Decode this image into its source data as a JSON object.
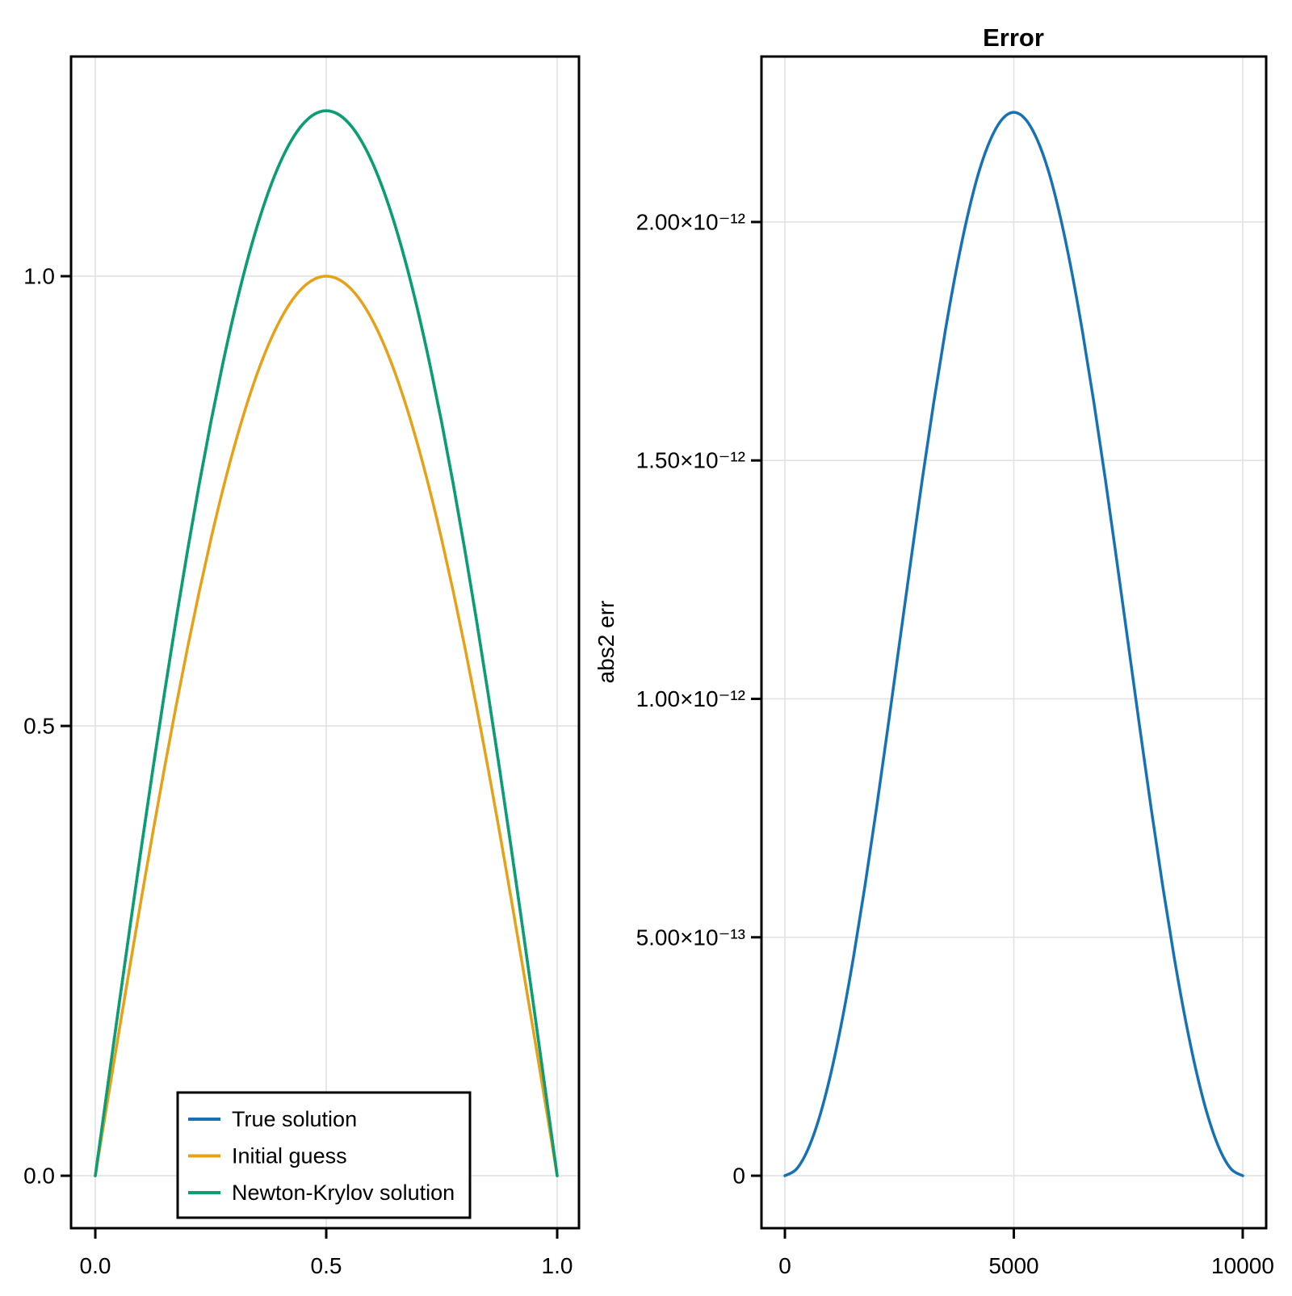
{
  "figure": {
    "background": "#ffffff"
  },
  "colors": {
    "series_blue": "#1772B5",
    "series_orange": "#E6A117",
    "series_green": "#0C9E73",
    "grid": "#E2E2E2",
    "axis": "#000000",
    "legend_background": "#FFFFFF",
    "legend_border": "#000000"
  },
  "legend": {
    "items": [
      {
        "label": "True solution",
        "color": "#1772B5"
      },
      {
        "label": "Initial guess",
        "color": "#E6A117"
      },
      {
        "label": "Newton-Krylov solution",
        "color": "#0C9E73"
      }
    ]
  },
  "chart_data": [
    {
      "type": "line",
      "panel": "left",
      "title": "",
      "xlabel": "",
      "ylabel": "",
      "grid": true,
      "legend_position": "bottom-left-inside",
      "xlim": [
        -0.0525,
        1.0472
      ],
      "ylim": [
        -0.0583,
        1.2442
      ],
      "xticks": {
        "values": [
          0.0,
          0.5,
          1.0
        ],
        "labels": [
          "0.0",
          "0.5",
          "1.0"
        ]
      },
      "yticks": {
        "values": [
          0.0,
          0.5,
          1.0
        ],
        "labels": [
          "0.0",
          "0.5",
          "1.0"
        ]
      },
      "x": [
        0,
        0.025,
        0.05,
        0.075,
        0.1,
        0.125,
        0.15,
        0.175,
        0.2,
        0.225,
        0.25,
        0.275,
        0.3,
        0.325,
        0.35,
        0.375,
        0.4,
        0.425,
        0.45,
        0.475,
        0.5,
        0.525,
        0.55,
        0.575,
        0.6,
        0.625,
        0.65,
        0.675,
        0.7,
        0.725,
        0.75,
        0.775,
        0.8,
        0.825,
        0.85,
        0.875,
        0.9,
        0.925,
        0.95,
        0.975,
        1.0
      ],
      "series": [
        {
          "name": "True solution",
          "color": "#1772B5",
          "peak": 1.184,
          "values": [
            0,
            0.0929,
            0.1852,
            0.2763,
            0.3659,
            0.4531,
            0.5375,
            0.6186,
            0.6959,
            0.7689,
            0.8372,
            0.9003,
            0.9579,
            1.0095,
            1.0549,
            1.0939,
            1.1261,
            1.1513,
            1.1694,
            1.1803,
            1.184,
            1.1803,
            1.1694,
            1.1513,
            1.1261,
            1.0939,
            1.0549,
            1.0095,
            0.9579,
            0.9003,
            0.8372,
            0.7689,
            0.6959,
            0.6186,
            0.5375,
            0.4531,
            0.3659,
            0.2763,
            0.1852,
            0.0929,
            0
          ]
        },
        {
          "name": "Initial guess",
          "color": "#E6A117",
          "peak": 1.0,
          "values": [
            0,
            0.0785,
            0.1564,
            0.2334,
            0.309,
            0.3827,
            0.454,
            0.5225,
            0.5878,
            0.6494,
            0.7071,
            0.7604,
            0.809,
            0.8526,
            0.891,
            0.9239,
            0.9511,
            0.9724,
            0.9877,
            0.9969,
            1.0,
            0.9969,
            0.9877,
            0.9724,
            0.9511,
            0.9239,
            0.891,
            0.8526,
            0.809,
            0.7604,
            0.7071,
            0.6494,
            0.5878,
            0.5225,
            0.454,
            0.3827,
            0.309,
            0.2334,
            0.1564,
            0.0785,
            0
          ]
        },
        {
          "name": "Newton-Krylov solution",
          "color": "#0C9E73",
          "peak": 1.184,
          "values": [
            0,
            0.0929,
            0.1852,
            0.2763,
            0.3659,
            0.4531,
            0.5375,
            0.6186,
            0.6959,
            0.7689,
            0.8372,
            0.9003,
            0.9579,
            1.0095,
            1.0549,
            1.0939,
            1.1261,
            1.1513,
            1.1694,
            1.1803,
            1.184,
            1.1803,
            1.1694,
            1.1513,
            1.1261,
            1.0939,
            1.0549,
            1.0095,
            0.9579,
            0.9003,
            0.8372,
            0.7689,
            0.6959,
            0.6186,
            0.5375,
            0.4531,
            0.3659,
            0.2763,
            0.1852,
            0.0929,
            0
          ]
        }
      ]
    },
    {
      "type": "line",
      "panel": "right",
      "title": "Error",
      "xlabel": "",
      "ylabel": "abs2 err",
      "grid": true,
      "legend_position": "none",
      "xlim": [
        -512,
        10512
      ],
      "ylim": [
        -1.1e-13,
        2.347e-12
      ],
      "xticks": {
        "values": [
          0,
          5000,
          10000
        ],
        "labels": [
          "0",
          "5000",
          "10000"
        ]
      },
      "yticks": {
        "values": [
          0,
          5e-13,
          1e-12,
          1.5e-12,
          2e-12
        ],
        "labels": [
          "0",
          "5.00×10⁻¹³",
          "1.00×10⁻¹²",
          "1.50×10⁻¹²",
          "2.00×10⁻¹²"
        ]
      },
      "x": [
        0,
        250,
        500,
        750,
        1000,
        1250,
        1500,
        1750,
        2000,
        2250,
        2500,
        2750,
        3000,
        3250,
        3500,
        3750,
        4000,
        4250,
        4500,
        4750,
        5000,
        5250,
        5500,
        5750,
        6000,
        6250,
        6500,
        6750,
        7000,
        7250,
        7500,
        7750,
        8000,
        8250,
        8500,
        8750,
        9000,
        9250,
        9500,
        9750,
        10000
      ],
      "series": [
        {
          "name": "abs2 err",
          "color": "#1772B5",
          "peak": 2.23e-12,
          "values": [
            0,
            1.37e-14,
            5.46e-14,
            1.215e-13,
            2.129e-13,
            3.266e-13,
            4.596e-13,
            6.088e-13,
            7.704e-13,
            9.406e-13,
            1.115e-12,
            1.289e-12,
            1.46e-12,
            1.621e-12,
            1.77e-12,
            1.903e-12,
            2.017e-12,
            2.109e-12,
            2.175e-12,
            2.216e-12,
            2.23e-12,
            2.216e-12,
            2.175e-12,
            2.109e-12,
            2.017e-12,
            1.903e-12,
            1.77e-12,
            1.621e-12,
            1.46e-12,
            1.289e-12,
            1.115e-12,
            9.406e-13,
            7.704e-13,
            6.088e-13,
            4.596e-13,
            3.266e-13,
            2.129e-13,
            1.215e-13,
            5.46e-14,
            1.37e-14,
            0
          ]
        }
      ]
    }
  ]
}
